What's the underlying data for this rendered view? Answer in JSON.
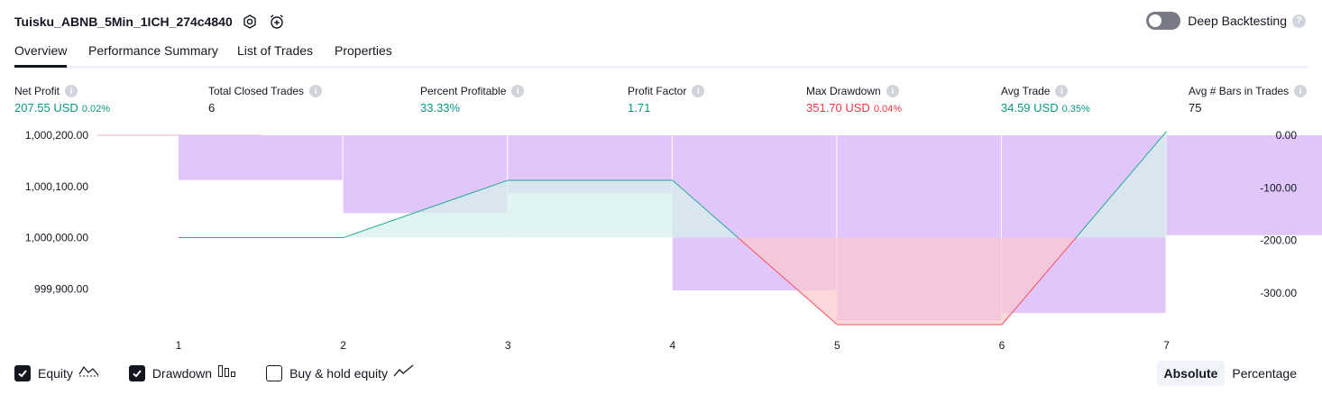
{
  "header": {
    "strategy_name": "Tuisku_ABNB_5Min_1ICH_274c4840",
    "settings_icon": "settings-gear-icon",
    "alert_icon": "alarm-clock-add-icon"
  },
  "deep_backtesting": {
    "label": "Deep Backtesting",
    "enabled": false,
    "help": "?"
  },
  "tabs": [
    {
      "label": "Overview",
      "active": true
    },
    {
      "label": "Performance Summary",
      "active": false
    },
    {
      "label": "List of Trades",
      "active": false
    },
    {
      "label": "Properties",
      "active": false
    }
  ],
  "metrics": {
    "net_profit": {
      "label": "Net Profit",
      "value": "207.55 USD",
      "pct": "0.02%"
    },
    "total_closed_trades": {
      "label": "Total Closed Trades",
      "value": "6"
    },
    "percent_profitable": {
      "label": "Percent Profitable",
      "value": "33.33%"
    },
    "profit_factor": {
      "label": "Profit Factor",
      "value": "1.71"
    },
    "max_drawdown": {
      "label": "Max Drawdown",
      "value": "351.70 USD",
      "pct": "0.04%"
    },
    "avg_trade": {
      "label": "Avg Trade",
      "value": "34.59 USD",
      "pct": "0.35%"
    },
    "avg_bars": {
      "label": "Avg # Bars in Trades",
      "value": "75"
    }
  },
  "chart_data": {
    "type": "area",
    "x": [
      1,
      2,
      3,
      4,
      5,
      6,
      7
    ],
    "x_tick_labels": [
      "1",
      "2",
      "3",
      "4",
      "5",
      "6",
      "7"
    ],
    "left_axis": {
      "tick_labels": [
        "1,000,200.00",
        "1,000,100.00",
        "1,000,000.00",
        "999,900.00"
      ],
      "ticks": [
        1000200,
        1000100,
        1000000,
        999900
      ],
      "range": [
        999830,
        1000200
      ]
    },
    "right_axis": {
      "tick_labels": [
        "0.00",
        "-100.00",
        "-200.00",
        "-300.00"
      ],
      "ticks": [
        0,
        -100,
        -200,
        -300
      ],
      "range": [
        -360,
        0
      ]
    },
    "equity": [
      1000000,
      1000000,
      1000112,
      1000112,
      999830,
      999830,
      1000207.55
    ],
    "buy_hold_equity": [],
    "drawdown": [
      -85,
      -148,
      -110,
      -295,
      -352,
      -338,
      -190
    ],
    "colors": {
      "equity_up": "#22ab94",
      "equity_down": "#f7525f",
      "equity_fill_up": "#d6f0ec",
      "equity_fill_down": "#fcc8cc",
      "drawdown_fill": "#e1c6fb",
      "top_reference": "#f7a8ca"
    }
  },
  "legend": {
    "equity": {
      "label": "Equity",
      "checked": true,
      "icon": "equity-line-icon"
    },
    "drawdown": {
      "label": "Drawdown",
      "checked": true,
      "icon": "drawdown-bars-icon"
    },
    "buy_hold": {
      "label": "Buy & hold equity",
      "checked": false,
      "icon": "buy-hold-line-icon"
    }
  },
  "mode": {
    "absolute": "Absolute",
    "percentage": "Percentage",
    "selected": "absolute"
  }
}
